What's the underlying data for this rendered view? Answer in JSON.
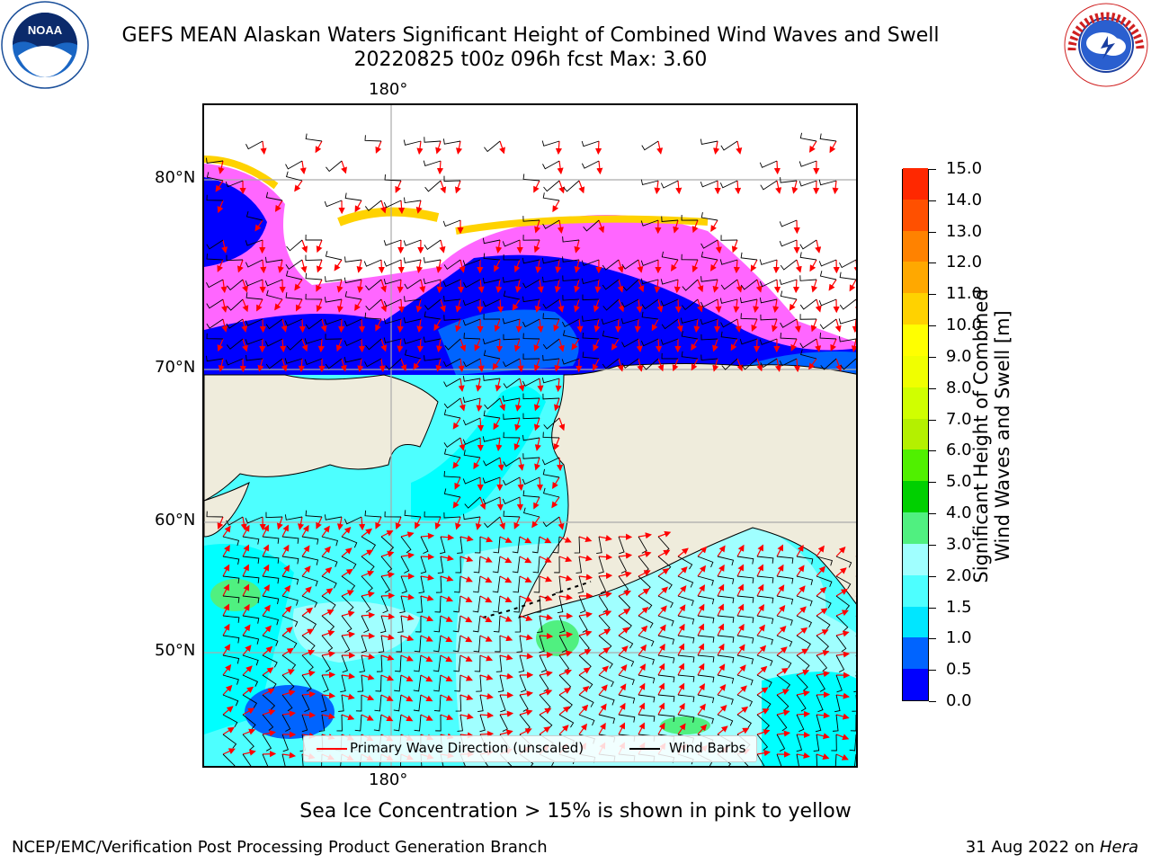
{
  "title_line1": "GEFS MEAN Alaskan Waters Significant Height of Combined Wind Waves and Swell",
  "title_line2": "20220825 t00z 096h fcst   Max: 3.60",
  "map": {
    "top_lon_label": "180°",
    "bottom_lon_label": "180°",
    "lat_labels": [
      "80°N",
      "70°N",
      "60°N",
      "50°N"
    ]
  },
  "colorbar": {
    "title_line1": "Significant Height of Combined",
    "title_line2": "Wind Waves and Swell [m]",
    "ticks": [
      "0.0",
      "0.5",
      "1.0",
      "1.5",
      "2.0",
      "3.0",
      "4.0",
      "5.0",
      "6.0",
      "7.0",
      "8.0",
      "9.0",
      "10.0",
      "11.0",
      "12.0",
      "13.0",
      "14.0",
      "15.0"
    ],
    "colors": [
      "#0000ff",
      "#0064ff",
      "#00e6ff",
      "#4dffff",
      "#a0ffff",
      "#50f080",
      "#00d000",
      "#50f000",
      "#b4f000",
      "#d0ff00",
      "#f0ff00",
      "#ffff00",
      "#ffd200",
      "#ffa800",
      "#ff8200",
      "#ff5000",
      "#ff2800",
      "#ff0000"
    ]
  },
  "legend": {
    "wave_label": "Primary Wave Direction (unscaled)",
    "wind_label": "Wind Barbs",
    "wave_color": "#ff0000",
    "wind_color": "#000000"
  },
  "caption": "Sea Ice Concentration > 15% is shown in pink to yellow",
  "credit": "NCEP/EMC/Verification Post Processing Product Generation Branch",
  "date_text": "31 Aug 2022 on ",
  "date_machine": "Hera",
  "logos": {
    "noaa_text": "NOAA",
    "nws_text": "NATIONAL WEATHER SERVICE"
  }
}
